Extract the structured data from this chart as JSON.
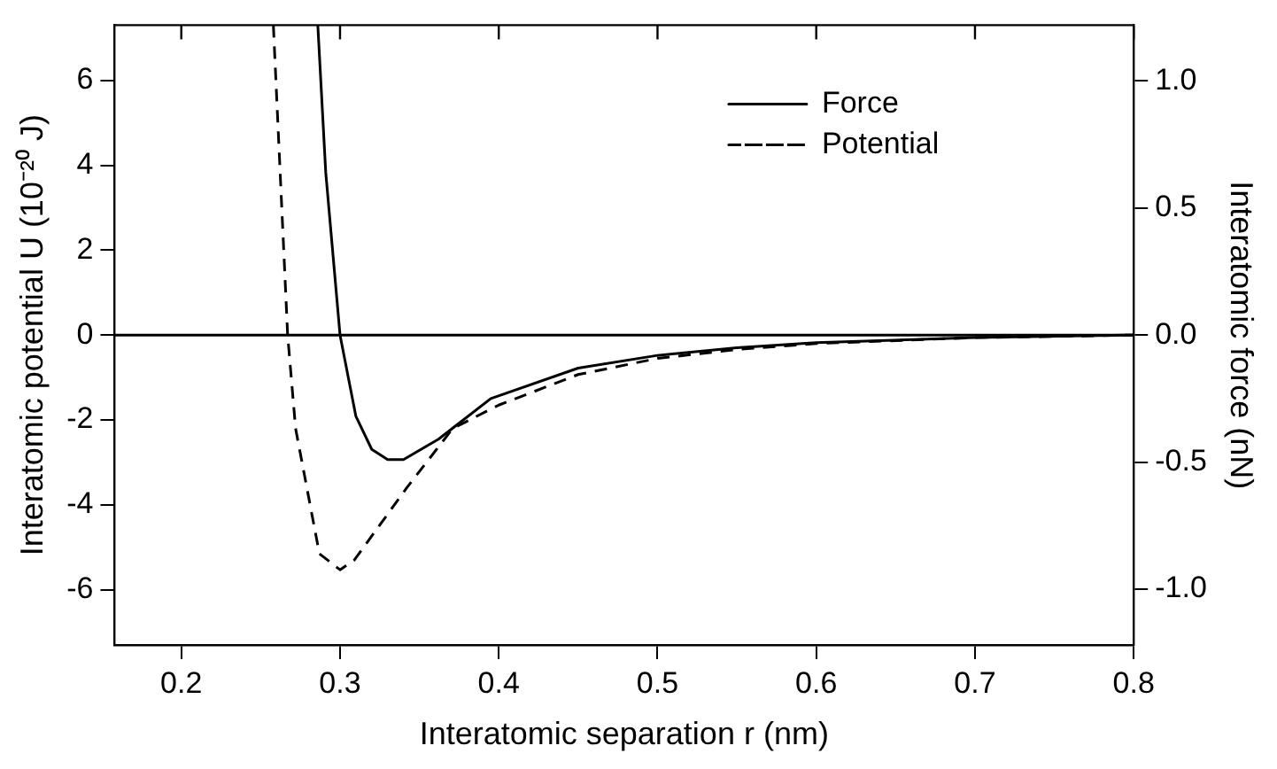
{
  "chart_data": {
    "type": "line",
    "xlabel": "Interatomic separation r (nm)",
    "ylabel": "Interatomic potential U (10⁻²⁰ J)",
    "y2label": "Interatomic force (nN)",
    "xlim": [
      0.158,
      0.8
    ],
    "xticks": [
      0.2,
      0.3,
      0.4,
      0.5,
      0.6,
      0.7,
      0.8
    ],
    "ylim": [
      -7.3,
      7.3
    ],
    "yticks": [
      -6,
      -4,
      -2,
      0,
      2,
      4,
      6
    ],
    "y2lim": [
      -1.22,
      1.22
    ],
    "y2ticks": [
      {
        "value": -1,
        "label": "-1.0"
      },
      {
        "value": -0.5,
        "label": "-0.5"
      },
      {
        "value": 0,
        "label": "0.0"
      },
      {
        "value": 0.5,
        "label": "0.5"
      },
      {
        "value": 1,
        "label": "1.0"
      }
    ],
    "series": [
      {
        "name": "Force",
        "color": "#000000",
        "axis": "y2",
        "line_style": "solid",
        "x": [
          0.286,
          0.291,
          0.3,
          0.31,
          0.32,
          0.33,
          0.34,
          0.362,
          0.395,
          0.45,
          0.5,
          0.55,
          0.6,
          0.7,
          0.8
        ],
        "values": [
          1.22,
          0.64,
          0,
          -0.32,
          -0.45,
          -0.49,
          -0.49,
          -0.41,
          -0.25,
          -0.13,
          -0.08,
          -0.05,
          -0.03,
          -0.01,
          0
        ]
      },
      {
        "name": "Potential",
        "color": "#000000",
        "axis": "y",
        "line_style": "dashed",
        "x": [
          0.258,
          0.267,
          0.272,
          0.287,
          0.3,
          0.309,
          0.342,
          0.371,
          0.4,
          0.45,
          0.5,
          0.55,
          0.6,
          0.7,
          0.8
        ],
        "values": [
          7.3,
          0,
          -2.2,
          -5.15,
          -5.53,
          -5.3,
          -3.6,
          -2.2,
          -1.65,
          -0.93,
          -0.55,
          -0.34,
          -0.2,
          -0.06,
          0
        ]
      }
    ],
    "ref_lines": [
      {
        "axis": "y",
        "value": 0,
        "color": "#000000",
        "line_style": "solid"
      }
    ],
    "legend": "top right",
    "grid": false,
    "marker": "none"
  }
}
